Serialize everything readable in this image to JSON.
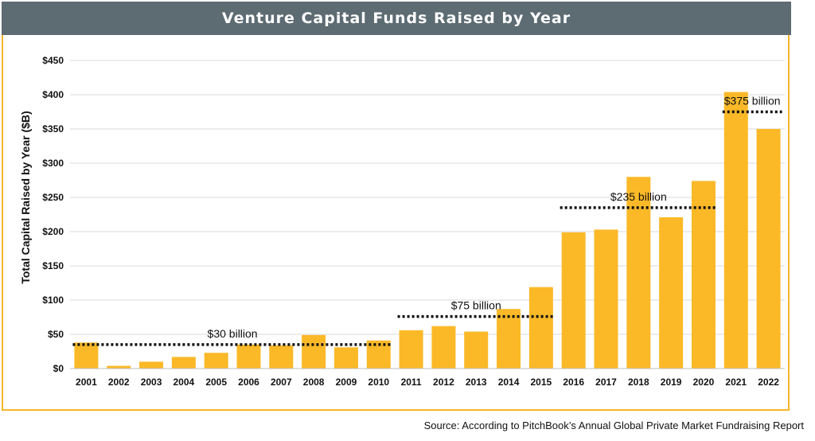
{
  "chart_data": {
    "type": "bar",
    "title": "Venture Capital Funds Raised by Year",
    "ylabel": "Total Capital Raised by Year ($B)",
    "xlabel": "",
    "ylim": [
      0,
      450
    ],
    "yticks": [
      0,
      50,
      100,
      150,
      200,
      250,
      300,
      350,
      400,
      450
    ],
    "ytick_labels": [
      "$0",
      "$50",
      "$100",
      "$150",
      "$200",
      "$250",
      "$300",
      "$350",
      "$400",
      "$450"
    ],
    "grid": true,
    "categories": [
      "2001",
      "2002",
      "2003",
      "2004",
      "2005",
      "2006",
      "2007",
      "2008",
      "2009",
      "2010",
      "2011",
      "2012",
      "2013",
      "2014",
      "2015",
      "2016",
      "2017",
      "2018",
      "2019",
      "2020",
      "2021",
      "2022"
    ],
    "values": [
      38,
      4,
      10,
      17,
      23,
      35,
      34,
      49,
      31,
      41,
      56,
      62,
      54,
      87,
      119,
      199,
      203,
      280,
      221,
      274,
      404,
      350
    ],
    "bar_color": "#fbb928",
    "annotations": [
      {
        "label": "$30 billion",
        "value": 35,
        "from": "2001",
        "to": "2010"
      },
      {
        "label": "$75 billion",
        "value": 76,
        "from": "2011",
        "to": "2015"
      },
      {
        "label": "$235 billion",
        "value": 235,
        "from": "2016",
        "to": "2020"
      },
      {
        "label": "$375 billion",
        "value": 375,
        "from": "2021",
        "to": "2022"
      }
    ]
  },
  "source": "Source: According to PitchBook’s Annual Global Private Market Fundraising Report"
}
